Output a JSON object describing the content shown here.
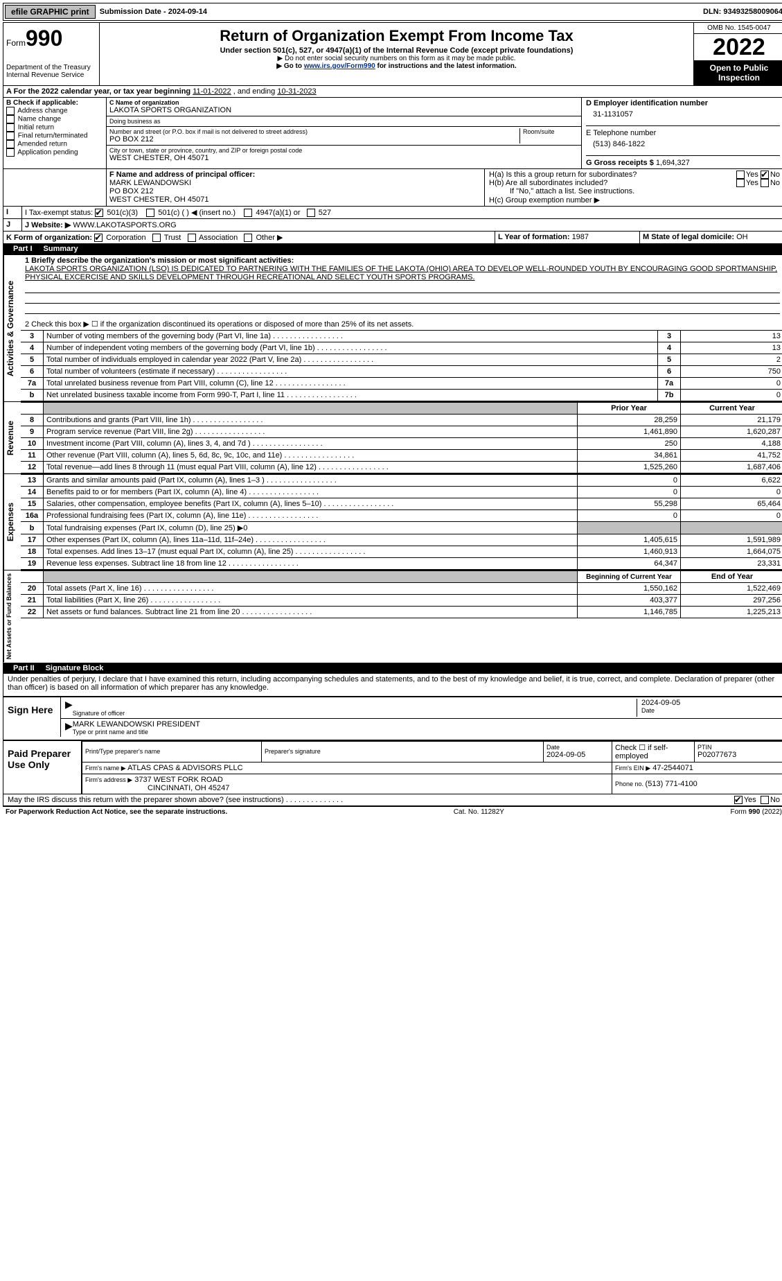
{
  "topbar": {
    "efile": "efile GRAPHIC print",
    "submission_label": "Submission Date - ",
    "submission_date": "2024-09-14",
    "dln_label": "DLN: ",
    "dln": "93493258009064"
  },
  "header": {
    "form_label": "Form",
    "form_number": "990",
    "dept": "Department of the Treasury\nInternal Revenue Service",
    "title": "Return of Organization Exempt From Income Tax",
    "subtitle": "Under section 501(c), 527, or 4947(a)(1) of the Internal Revenue Code (except private foundations)",
    "note1": "▶ Do not enter social security numbers on this form as it may be made public.",
    "note2_pre": "▶ Go to ",
    "note2_link": "www.irs.gov/Form990",
    "note2_post": " for instructions and the latest information.",
    "omb": "OMB No. 1545-0047",
    "year": "2022",
    "open": "Open to Public Inspection"
  },
  "period": {
    "line": "A For the 2022 calendar year, or tax year beginning ",
    "begin": "11-01-2022",
    "mid": "    , and ending ",
    "end": "10-31-2023"
  },
  "sectionB": {
    "label": "B Check if applicable:",
    "items": [
      "Address change",
      "Name change",
      "Initial return",
      "Final return/terminated",
      "Amended return",
      "Application pending"
    ]
  },
  "sectionC": {
    "name_label": "C Name of organization",
    "name": "LAKOTA SPORTS ORGANIZATION",
    "dba_label": "Doing business as",
    "dba": "",
    "street_label": "Number and street (or P.O. box if mail is not delivered to street address)",
    "room_label": "Room/suite",
    "street": "PO BOX 212",
    "city_label": "City or town, state or province, country, and ZIP or foreign postal code",
    "city": "WEST CHESTER, OH  45071"
  },
  "sectionD": {
    "label": "D Employer identification number",
    "value": "31-1131057"
  },
  "sectionE": {
    "label": "E Telephone number",
    "value": "(513) 846-1822"
  },
  "sectionG": {
    "label": "G Gross receipts $ ",
    "value": "1,694,327"
  },
  "sectionF": {
    "label": "F Name and address of principal officer:",
    "name": "MARK LEWANDOWSKI",
    "street": "PO BOX 212",
    "city": "WEST CHESTER, OH  45071"
  },
  "sectionH": {
    "a": "H(a)  Is this a group return for subordinates?",
    "b": "H(b)  Are all subordinates included?",
    "b_note": "If \"No,\" attach a list. See instructions.",
    "c": "H(c)  Group exemption number ▶",
    "yes": "Yes",
    "no": "No"
  },
  "sectionI": {
    "label": "I  Tax-exempt status:",
    "opts": [
      "501(c)(3)",
      "501(c) (    ) ◀ (insert no.)",
      "4947(a)(1) or",
      "527"
    ]
  },
  "sectionJ": {
    "label": "J  Website: ▶",
    "value": "WWW.LAKOTASPORTS.ORG"
  },
  "sectionK": {
    "label": "K Form of organization:",
    "opts": [
      "Corporation",
      "Trust",
      "Association",
      "Other ▶"
    ]
  },
  "sectionL": {
    "label": "L Year of formation: ",
    "value": "1987"
  },
  "sectionM": {
    "label": "M State of legal domicile: ",
    "value": "OH"
  },
  "partI": {
    "num": "Part I",
    "title": "Summary"
  },
  "mission": {
    "label": "1  Briefly describe the organization's mission or most significant activities:",
    "text": "LAKOTA SPORTS ORGANIZATION (LSO) IS DEDICATED TO PARTNERING WITH THE FAMILIES OF THE LAKOTA (OHIO) AREA TO DEVELOP WELL-ROUNDED YOUTH BY ENCOURAGING GOOD SPORTMANSHIP, PHYSICAL EXCERCISE AND SKILLS DEVELOPMENT THROUGH RECREATIONAL AND SELECT YOUTH SPORTS PROGRAMS."
  },
  "governance": {
    "line2": "2   Check this box ▶ ☐  if the organization discontinued its operations or disposed of more than 25% of its net assets.",
    "rows": [
      {
        "n": "3",
        "desc": "Number of voting members of the governing body (Part VI, line 1a)",
        "box": "3",
        "val": "13"
      },
      {
        "n": "4",
        "desc": "Number of independent voting members of the governing body (Part VI, line 1b)",
        "box": "4",
        "val": "13"
      },
      {
        "n": "5",
        "desc": "Total number of individuals employed in calendar year 2022 (Part V, line 2a)",
        "box": "5",
        "val": "2"
      },
      {
        "n": "6",
        "desc": "Total number of volunteers (estimate if necessary)",
        "box": "6",
        "val": "750"
      },
      {
        "n": "7a",
        "desc": "Total unrelated business revenue from Part VIII, column (C), line 12",
        "box": "7a",
        "val": "0"
      },
      {
        "n": "b",
        "desc": "Net unrelated business taxable income from Form 990-T, Part I, line 11",
        "box": "7b",
        "val": "0"
      }
    ]
  },
  "revenue": {
    "header_prior": "Prior Year",
    "header_current": "Current Year",
    "rows": [
      {
        "n": "8",
        "desc": "Contributions and grants (Part VIII, line 1h)",
        "prior": "28,259",
        "cur": "21,179"
      },
      {
        "n": "9",
        "desc": "Program service revenue (Part VIII, line 2g)",
        "prior": "1,461,890",
        "cur": "1,620,287"
      },
      {
        "n": "10",
        "desc": "Investment income (Part VIII, column (A), lines 3, 4, and 7d )",
        "prior": "250",
        "cur": "4,188"
      },
      {
        "n": "11",
        "desc": "Other revenue (Part VIII, column (A), lines 5, 6d, 8c, 9c, 10c, and 11e)",
        "prior": "34,861",
        "cur": "41,752"
      },
      {
        "n": "12",
        "desc": "Total revenue—add lines 8 through 11 (must equal Part VIII, column (A), line 12)",
        "prior": "1,525,260",
        "cur": "1,687,406"
      }
    ]
  },
  "expenses": {
    "rows": [
      {
        "n": "13",
        "desc": "Grants and similar amounts paid (Part IX, column (A), lines 1–3 )",
        "prior": "0",
        "cur": "6,622"
      },
      {
        "n": "14",
        "desc": "Benefits paid to or for members (Part IX, column (A), line 4)",
        "prior": "0",
        "cur": "0"
      },
      {
        "n": "15",
        "desc": "Salaries, other compensation, employee benefits (Part IX, column (A), lines 5–10)",
        "prior": "55,298",
        "cur": "65,464"
      },
      {
        "n": "16a",
        "desc": "Professional fundraising fees (Part IX, column (A), line 11e)",
        "prior": "0",
        "cur": "0"
      },
      {
        "n": "b",
        "desc": "Total fundraising expenses (Part IX, column (D), line 25) ▶0",
        "prior": "",
        "cur": "",
        "shaded": true
      },
      {
        "n": "17",
        "desc": "Other expenses (Part IX, column (A), lines 11a–11d, 11f–24e)",
        "prior": "1,405,615",
        "cur": "1,591,989"
      },
      {
        "n": "18",
        "desc": "Total expenses. Add lines 13–17 (must equal Part IX, column (A), line 25)",
        "prior": "1,460,913",
        "cur": "1,664,075"
      },
      {
        "n": "19",
        "desc": "Revenue less expenses. Subtract line 18 from line 12",
        "prior": "64,347",
        "cur": "23,331"
      }
    ]
  },
  "netassets": {
    "header_begin": "Beginning of Current Year",
    "header_end": "End of Year",
    "rows": [
      {
        "n": "20",
        "desc": "Total assets (Part X, line 16)",
        "prior": "1,550,162",
        "cur": "1,522,469"
      },
      {
        "n": "21",
        "desc": "Total liabilities (Part X, line 26)",
        "prior": "403,377",
        "cur": "297,256"
      },
      {
        "n": "22",
        "desc": "Net assets or fund balances. Subtract line 21 from line 20",
        "prior": "1,146,785",
        "cur": "1,225,213"
      }
    ]
  },
  "partII": {
    "num": "Part II",
    "title": "Signature Block"
  },
  "sig": {
    "penalty": "Under penalties of perjury, I declare that I have examined this return, including accompanying schedules and statements, and to the best of my knowledge and belief, it is true, correct, and complete. Declaration of preparer (other than officer) is based on all information of which preparer has any knowledge.",
    "sign_here": "Sign Here",
    "officer_sig": "Signature of officer",
    "date_label": "Date",
    "date": "2024-09-05",
    "name_title": "MARK LEWANDOWSKI PRESIDENT",
    "name_title_label": "Type or print name and title",
    "paid": "Paid Preparer Use Only",
    "prep_name_label": "Print/Type preparer's name",
    "prep_sig_label": "Preparer's signature",
    "prep_date": "2024-09-05",
    "self_emp": "Check ☐ if self-employed",
    "ptin_label": "PTIN",
    "ptin": "P02077673",
    "firm_name_label": "Firm's name    ▶",
    "firm_name": "ATLAS CPAS & ADVISORS PLLC",
    "firm_ein_label": "Firm's EIN ▶",
    "firm_ein": "47-2544071",
    "firm_addr_label": "Firm's address ▶",
    "firm_addr1": "3737 WEST FORK ROAD",
    "firm_addr2": "CINCINNATI, OH  45247",
    "phone_label": "Phone no. ",
    "phone": "(513) 771-4100",
    "discuss": "May the IRS discuss this return with the preparer shown above? (see instructions)"
  },
  "footer": {
    "left": "For Paperwork Reduction Act Notice, see the separate instructions.",
    "mid": "Cat. No. 11282Y",
    "right": "Form 990 (2022)"
  },
  "vert_labels": {
    "gov": "Activities & Governance",
    "rev": "Revenue",
    "exp": "Expenses",
    "net": "Net Assets or Fund Balances"
  }
}
